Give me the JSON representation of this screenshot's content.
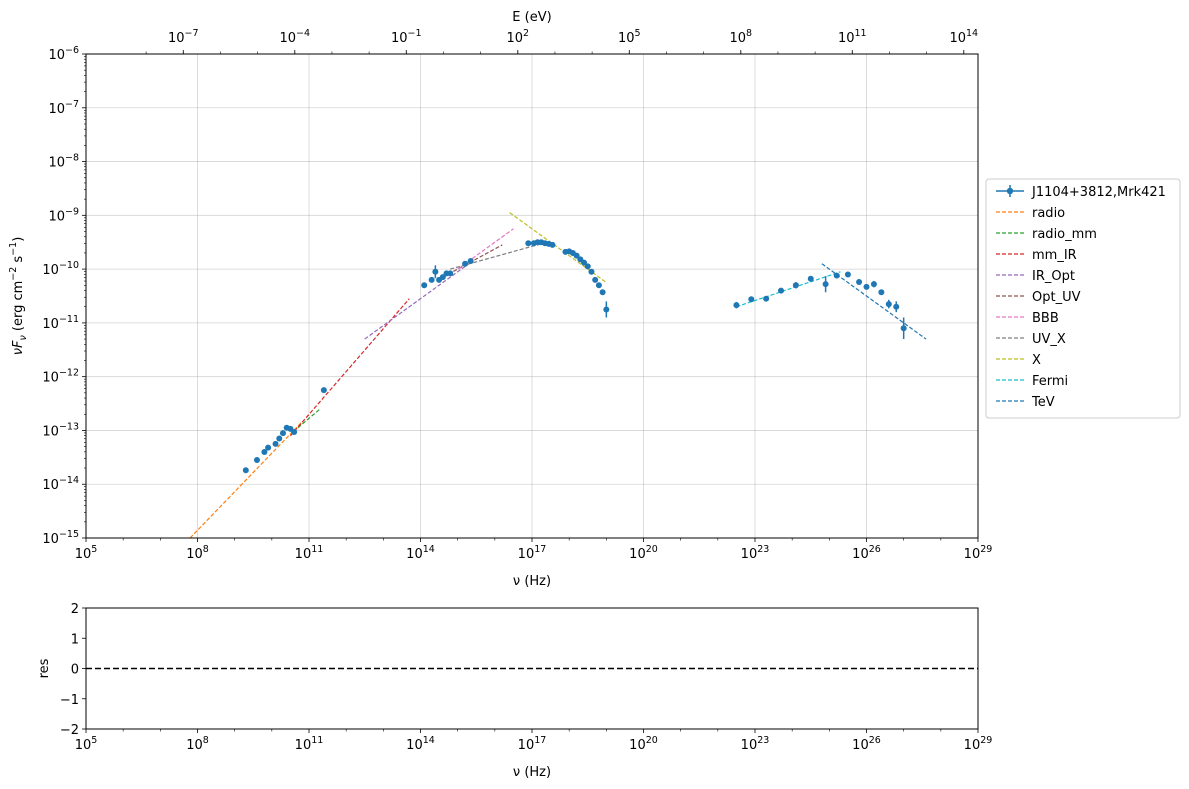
{
  "chart_data": [
    {
      "type": "scatter",
      "title": "",
      "xlabel": "ν  (Hz)",
      "ylabel": "νF_ν  (erg cm^-2  s^-1)",
      "top_xlabel": "E (eV)",
      "xscale": "log",
      "yscale": "log",
      "xlim": [
        100000.0,
        1e+29
      ],
      "ylim": [
        1e-15,
        1e-06
      ],
      "grid": true,
      "legend_position": "outside-right",
      "x_ticks": [
        "10^5",
        "10^8",
        "10^11",
        "10^14",
        "10^17",
        "10^20",
        "10^23",
        "10^26",
        "10^29"
      ],
      "y_ticks": [
        "10^-15",
        "10^-14",
        "10^-13",
        "10^-12",
        "10^-11",
        "10^-10",
        "10^-9",
        "10^-8",
        "10^-7",
        "10^-6"
      ],
      "top_ticks": [
        "10^-7",
        "10^-4",
        "10^-1",
        "10^2",
        "10^5",
        "10^8",
        "10^11",
        "10^14"
      ],
      "top_tick_values_log10_eV": [
        -7,
        -4,
        -1,
        2,
        5,
        8,
        11,
        14
      ],
      "series": [
        {
          "name": "J1104+3812,Mrk421",
          "kind": "points",
          "color": "#1f77b4",
          "log10_x": [
            9.3,
            9.6,
            9.8,
            9.9,
            10.1,
            10.2,
            10.3,
            10.4,
            10.5,
            10.6,
            11.4,
            14.1,
            14.3,
            14.4,
            14.5,
            14.6,
            14.7,
            14.8,
            15.2,
            15.35,
            16.9,
            17.05,
            17.15,
            17.25,
            17.35,
            17.45,
            17.55,
            17.9,
            18.0,
            18.1,
            18.2,
            18.3,
            18.4,
            18.5,
            18.6,
            18.7,
            18.8,
            18.9,
            19.0,
            22.5,
            22.9,
            23.3,
            23.7,
            24.1,
            24.5,
            24.9,
            25.2,
            25.5,
            25.8,
            26.0,
            26.2,
            26.4,
            26.6,
            26.8,
            27.0
          ],
          "log10_y": [
            -13.74,
            -13.55,
            -13.4,
            -13.32,
            -13.25,
            -13.15,
            -13.05,
            -12.95,
            -12.97,
            -13.03,
            -12.25,
            -10.3,
            -10.2,
            -10.05,
            -10.2,
            -10.15,
            -10.08,
            -10.08,
            -9.9,
            -9.85,
            -9.52,
            -9.52,
            -9.5,
            -9.5,
            -9.52,
            -9.53,
            -9.55,
            -9.68,
            -9.67,
            -9.7,
            -9.75,
            -9.82,
            -9.88,
            -9.95,
            -10.05,
            -10.2,
            -10.3,
            -10.43,
            -10.75,
            -10.67,
            -10.56,
            -10.55,
            -10.4,
            -10.3,
            -10.18,
            -10.28,
            -10.12,
            -10.1,
            -10.24,
            -10.33,
            -10.28,
            -10.43,
            -10.65,
            -10.7,
            -11.1
          ],
          "log10_y_err": [
            0,
            0,
            0,
            0,
            0,
            0,
            0,
            0,
            0,
            0,
            0,
            0.05,
            0,
            0.12,
            0.05,
            0,
            0,
            0,
            0,
            0,
            0,
            0,
            0,
            0,
            0,
            0,
            0,
            0,
            0,
            0,
            0,
            0,
            0,
            0,
            0,
            0,
            0,
            0,
            0.15,
            0.06,
            0,
            0,
            0,
            0.06,
            0,
            0.15,
            0,
            0,
            0,
            0,
            0.06,
            0,
            0.08,
            0.1,
            0.2
          ]
        },
        {
          "name": "radio",
          "kind": "line",
          "color": "#ff7f0e",
          "log10_x": [
            7.8,
            10.8
          ],
          "log10_y": [
            -15.0,
            -12.85
          ]
        },
        {
          "name": "radio_mm",
          "kind": "line",
          "color": "#2ca02c",
          "log10_x": [
            10.7,
            11.3
          ],
          "log10_y": [
            -12.95,
            -12.6
          ]
        },
        {
          "name": "mm_IR",
          "kind": "line",
          "color": "#d62728",
          "log10_x": [
            10.5,
            13.7
          ],
          "log10_y": [
            -13.1,
            -10.55
          ]
        },
        {
          "name": "IR_Opt",
          "kind": "line",
          "color": "#9467bd",
          "log10_x": [
            12.5,
            15.4
          ],
          "log10_y": [
            -11.3,
            -9.85
          ]
        },
        {
          "name": "Opt_UV",
          "kind": "line",
          "color": "#8c564b",
          "log10_x": [
            14.6,
            16.2
          ],
          "log10_y": [
            -10.15,
            -9.55
          ]
        },
        {
          "name": "BBB",
          "kind": "line",
          "color": "#e377c2",
          "log10_x": [
            15.0,
            16.5
          ],
          "log10_y": [
            -10.0,
            -9.25
          ]
        },
        {
          "name": "UV_X",
          "kind": "line",
          "color": "#7f7f7f",
          "log10_x": [
            14.8,
            17.4
          ],
          "log10_y": [
            -10.0,
            -9.5
          ]
        },
        {
          "name": "X",
          "kind": "line",
          "color": "#bcbd22",
          "log10_x": [
            16.4,
            19.0
          ],
          "log10_y": [
            -8.95,
            -10.25
          ]
        },
        {
          "name": "Fermi",
          "kind": "line",
          "color": "#17becf",
          "log10_x": [
            22.5,
            25.3
          ],
          "log10_y": [
            -10.7,
            -10.05
          ]
        },
        {
          "name": "TeV",
          "kind": "line",
          "color": "#1f77b4",
          "log10_x": [
            24.8,
            27.6
          ],
          "log10_y": [
            -9.9,
            -11.3
          ]
        }
      ]
    },
    {
      "type": "line",
      "title": "",
      "xlabel": "ν  (Hz)",
      "ylabel": "res",
      "xscale": "log",
      "xlim": [
        100000.0,
        1e+29
      ],
      "ylim": [
        -2,
        2
      ],
      "x_ticks": [
        "10^5",
        "10^8",
        "10^11",
        "10^14",
        "10^17",
        "10^20",
        "10^23",
        "10^26",
        "10^29"
      ],
      "y_ticks": [
        "−2",
        "−1",
        "0",
        "1",
        "2"
      ],
      "reference_line": {
        "y": 0,
        "style": "dashed",
        "color": "#000000"
      }
    }
  ]
}
